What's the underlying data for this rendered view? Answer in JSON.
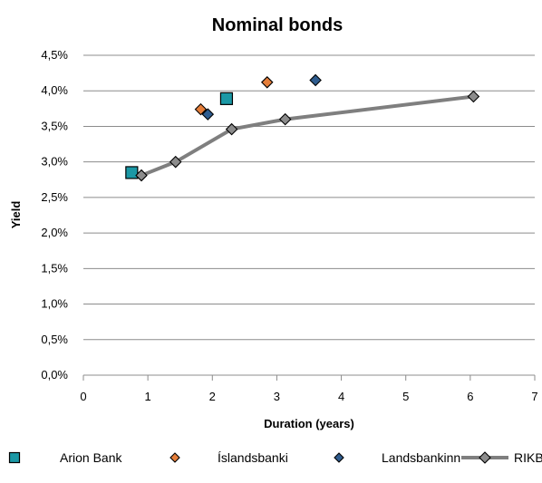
{
  "chart_data": {
    "type": "scatter",
    "title": "Nominal bonds",
    "xlabel": "Duration (years)",
    "ylabel": "Yield",
    "xlim": [
      0,
      7
    ],
    "ylim": [
      0,
      4.5
    ],
    "x_ticks": [
      "0",
      "1",
      "2",
      "3",
      "4",
      "5",
      "6",
      "7"
    ],
    "y_ticks": [
      "0,0%",
      "0,5%",
      "1,0%",
      "1,5%",
      "2,0%",
      "2,5%",
      "3,0%",
      "3,5%",
      "4,0%",
      "4,5%"
    ],
    "grid": "horizontal",
    "legend_position": "bottom",
    "series": [
      {
        "name": "Arion Bank",
        "marker": "square",
        "color": "#1B98A5",
        "line": false,
        "points": [
          [
            0.75,
            2.85
          ],
          [
            2.22,
            3.89
          ]
        ]
      },
      {
        "name": "Íslandsbanki",
        "marker": "diamond",
        "color": "#E57E3A",
        "line": false,
        "points": [
          [
            1.82,
            3.74
          ],
          [
            2.85,
            4.12
          ]
        ]
      },
      {
        "name": "Landsbankinn",
        "marker": "diamond",
        "color": "#2F5C8E",
        "line": false,
        "points": [
          [
            1.93,
            3.67
          ],
          [
            3.6,
            4.15
          ]
        ]
      },
      {
        "name": "RIKB",
        "marker": "diamond",
        "color": "#8C8C8C",
        "line_color": "#7F7F7F",
        "line": true,
        "points": [
          [
            0.9,
            2.81
          ],
          [
            1.43,
            3.0
          ],
          [
            2.3,
            3.46
          ],
          [
            3.13,
            3.6
          ],
          [
            6.05,
            3.92
          ]
        ]
      }
    ]
  }
}
